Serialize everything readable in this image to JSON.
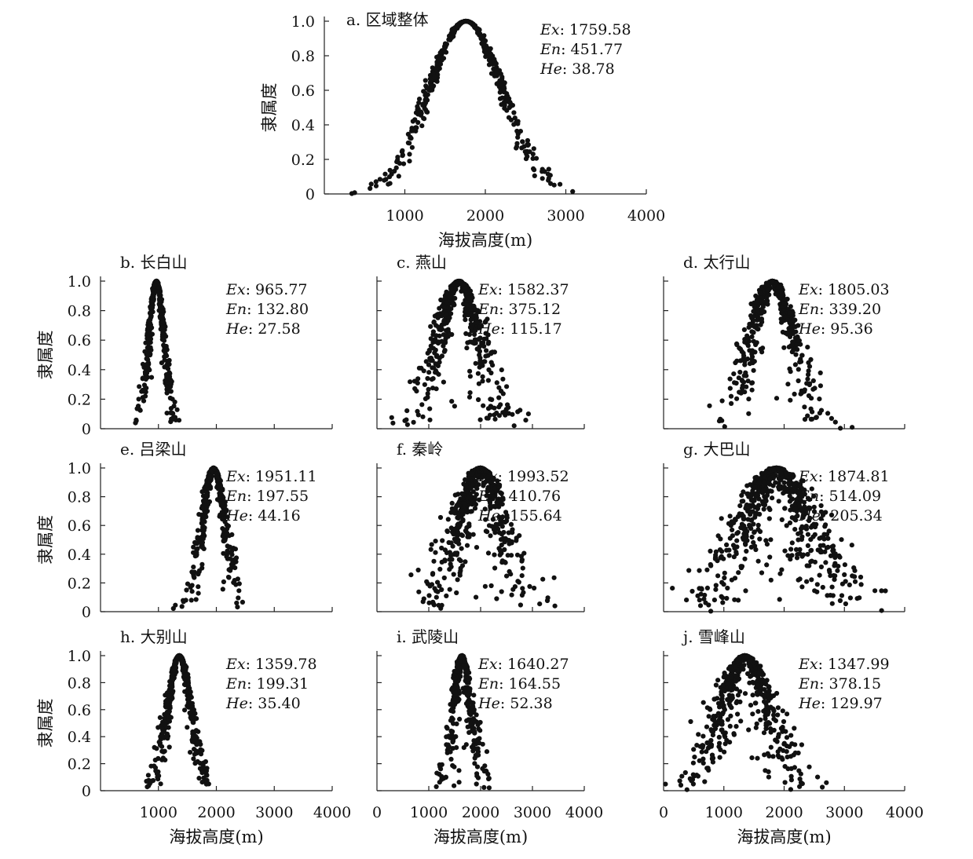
{
  "chart_data": [
    {
      "id": "a",
      "type": "scatter",
      "title": "a. 区域整体",
      "xlabel": "海拔高度(m)",
      "ylabel": "隶属度",
      "xlim": [
        0,
        4000
      ],
      "ylim": [
        0,
        1.0
      ],
      "xticks": [
        "1000",
        "2000",
        "3000",
        "4000"
      ],
      "yticks": [
        "0",
        "0.2",
        "0.4",
        "0.6",
        "0.8",
        "1.0"
      ],
      "stats": [
        {
          "name": "Ex",
          "value": ": 1759.58"
        },
        {
          "name": "En",
          "value": ": 451.77"
        },
        {
          "name": "He",
          "value": ": 38.78"
        }
      ],
      "Ex": 1759.58,
      "En": 451.77,
      "He": 38.78,
      "x_range": [
        250,
        3250
      ]
    },
    {
      "id": "b",
      "type": "scatter",
      "title": "b. 长白山",
      "xlabel": "",
      "ylabel": "隶属度",
      "xlim": [
        0,
        4000
      ],
      "ylim": [
        0,
        1.0
      ],
      "xticks": [],
      "yticks": [
        "0",
        "0.2",
        "0.4",
        "0.6",
        "0.8",
        "1.0"
      ],
      "stats": [
        {
          "name": "Ex",
          "value": ": 965.77"
        },
        {
          "name": "En",
          "value": ": 132.80"
        },
        {
          "name": "He",
          "value": ": 27.58"
        }
      ],
      "Ex": 965.77,
      "En": 132.8,
      "He": 27.58,
      "x_range": [
        520,
        1420
      ]
    },
    {
      "id": "c",
      "type": "scatter",
      "title": "c. 燕山",
      "xlabel": "",
      "ylabel": "",
      "xlim": [
        0,
        4000
      ],
      "ylim": [
        0,
        1.0
      ],
      "xticks": [],
      "yticks": [],
      "stats": [
        {
          "name": "Ex",
          "value": ": 1582.37"
        },
        {
          "name": "En",
          "value": ": 375.12"
        },
        {
          "name": "He",
          "value": ": 115.17"
        }
      ],
      "Ex": 1582.37,
      "En": 375.12,
      "He": 115.17,
      "x_range": [
        80,
        3500
      ]
    },
    {
      "id": "d",
      "type": "scatter",
      "title": "d. 太行山",
      "xlabel": "",
      "ylabel": "",
      "xlim": [
        0,
        4000
      ],
      "ylim": [
        0,
        1.0
      ],
      "xticks": [],
      "yticks": [],
      "stats": [
        {
          "name": "Ex",
          "value": ": 1805.03"
        },
        {
          "name": "En",
          "value": ": 339.20"
        },
        {
          "name": "He",
          "value": ": 95.36"
        }
      ],
      "Ex": 1805.03,
      "En": 339.2,
      "He": 95.36,
      "x_range": [
        650,
        3300
      ]
    },
    {
      "id": "e",
      "type": "scatter",
      "title": "e. 吕梁山",
      "xlabel": "",
      "ylabel": "隶属度",
      "xlim": [
        0,
        4000
      ],
      "ylim": [
        0,
        1.0
      ],
      "xticks": [],
      "yticks": [
        "0",
        "0.2",
        "0.4",
        "0.6",
        "0.8",
        "1.0"
      ],
      "stats": [
        {
          "name": "Ex",
          "value": ": 1951.11"
        },
        {
          "name": "En",
          "value": ": 197.55"
        },
        {
          "name": "He",
          "value": ": 44.16"
        }
      ],
      "Ex": 1951.11,
      "En": 197.55,
      "He": 44.16,
      "x_range": [
        1250,
        2850
      ]
    },
    {
      "id": "f",
      "type": "scatter",
      "title": "f. 秦岭",
      "xlabel": "",
      "ylabel": "",
      "xlim": [
        0,
        4000
      ],
      "ylim": [
        0,
        1.0
      ],
      "xticks": [],
      "yticks": [],
      "stats": [
        {
          "name": "Ex",
          "value": ": 1993.52"
        },
        {
          "name": "En",
          "value": ": 410.76"
        },
        {
          "name": "He",
          "value": ": 155.64"
        }
      ],
      "Ex": 1993.52,
      "En": 410.76,
      "He": 155.64,
      "x_range": [
        350,
        3650
      ]
    },
    {
      "id": "g",
      "type": "scatter",
      "title": "g. 大巴山",
      "xlabel": "",
      "ylabel": "",
      "xlim": [
        0,
        4000
      ],
      "ylim": [
        0,
        1.0
      ],
      "xticks": [],
      "yticks": [],
      "stats": [
        {
          "name": "Ex",
          "value": ": 1874.81"
        },
        {
          "name": "En",
          "value": ": 514.09"
        },
        {
          "name": "He",
          "value": ": 205.34"
        }
      ],
      "Ex": 1874.81,
      "En": 514.09,
      "He": 205.34,
      "x_range": [
        50,
        3850
      ]
    },
    {
      "id": "h",
      "type": "scatter",
      "title": "h. 大别山",
      "xlabel": "海拔高度(m)",
      "ylabel": "隶属度",
      "xlim": [
        0,
        4000
      ],
      "ylim": [
        0,
        1.0
      ],
      "xticks": [
        "1000",
        "2000",
        "3000",
        "4000"
      ],
      "yticks": [
        "0",
        "0.2",
        "0.4",
        "0.6",
        "0.8",
        "1.0"
      ],
      "stats": [
        {
          "name": "Ex",
          "value": ": 1359.78"
        },
        {
          "name": "En",
          "value": ": 199.31"
        },
        {
          "name": "He",
          "value": ": 35.40"
        }
      ],
      "Ex": 1359.78,
      "En": 199.31,
      "He": 35.4,
      "x_range": [
        700,
        1980
      ]
    },
    {
      "id": "i",
      "type": "scatter",
      "title": "i. 武陵山",
      "xlabel": "海拔高度(m)",
      "ylabel": "",
      "xlim": [
        0,
        4000
      ],
      "ylim": [
        0,
        1.0
      ],
      "xticks": [
        "0",
        "1000",
        "2000",
        "3000",
        "4000"
      ],
      "yticks": [],
      "stats": [
        {
          "name": "Ex",
          "value": ": 1640.27"
        },
        {
          "name": "En",
          "value": ": 164.55"
        },
        {
          "name": "He",
          "value": ": 52.38"
        }
      ],
      "Ex": 1640.27,
      "En": 164.55,
      "He": 52.38,
      "x_range": [
        1100,
        2250
      ]
    },
    {
      "id": "j",
      "type": "scatter",
      "title": "j. 雪峰山",
      "xlabel": "海拔高度(m)",
      "ylabel": "",
      "xlim": [
        0,
        4000
      ],
      "ylim": [
        0,
        1.0
      ],
      "xticks": [
        "0",
        "1000",
        "2000",
        "3000",
        "4000"
      ],
      "yticks": [],
      "stats": [
        {
          "name": "Ex",
          "value": ": 1347.99"
        },
        {
          "name": "En",
          "value": ": 378.15"
        },
        {
          "name": "He",
          "value": ": 129.97"
        }
      ],
      "Ex": 1347.99,
      "En": 378.15,
      "He": 129.97,
      "x_range": [
        30,
        3000
      ]
    }
  ]
}
